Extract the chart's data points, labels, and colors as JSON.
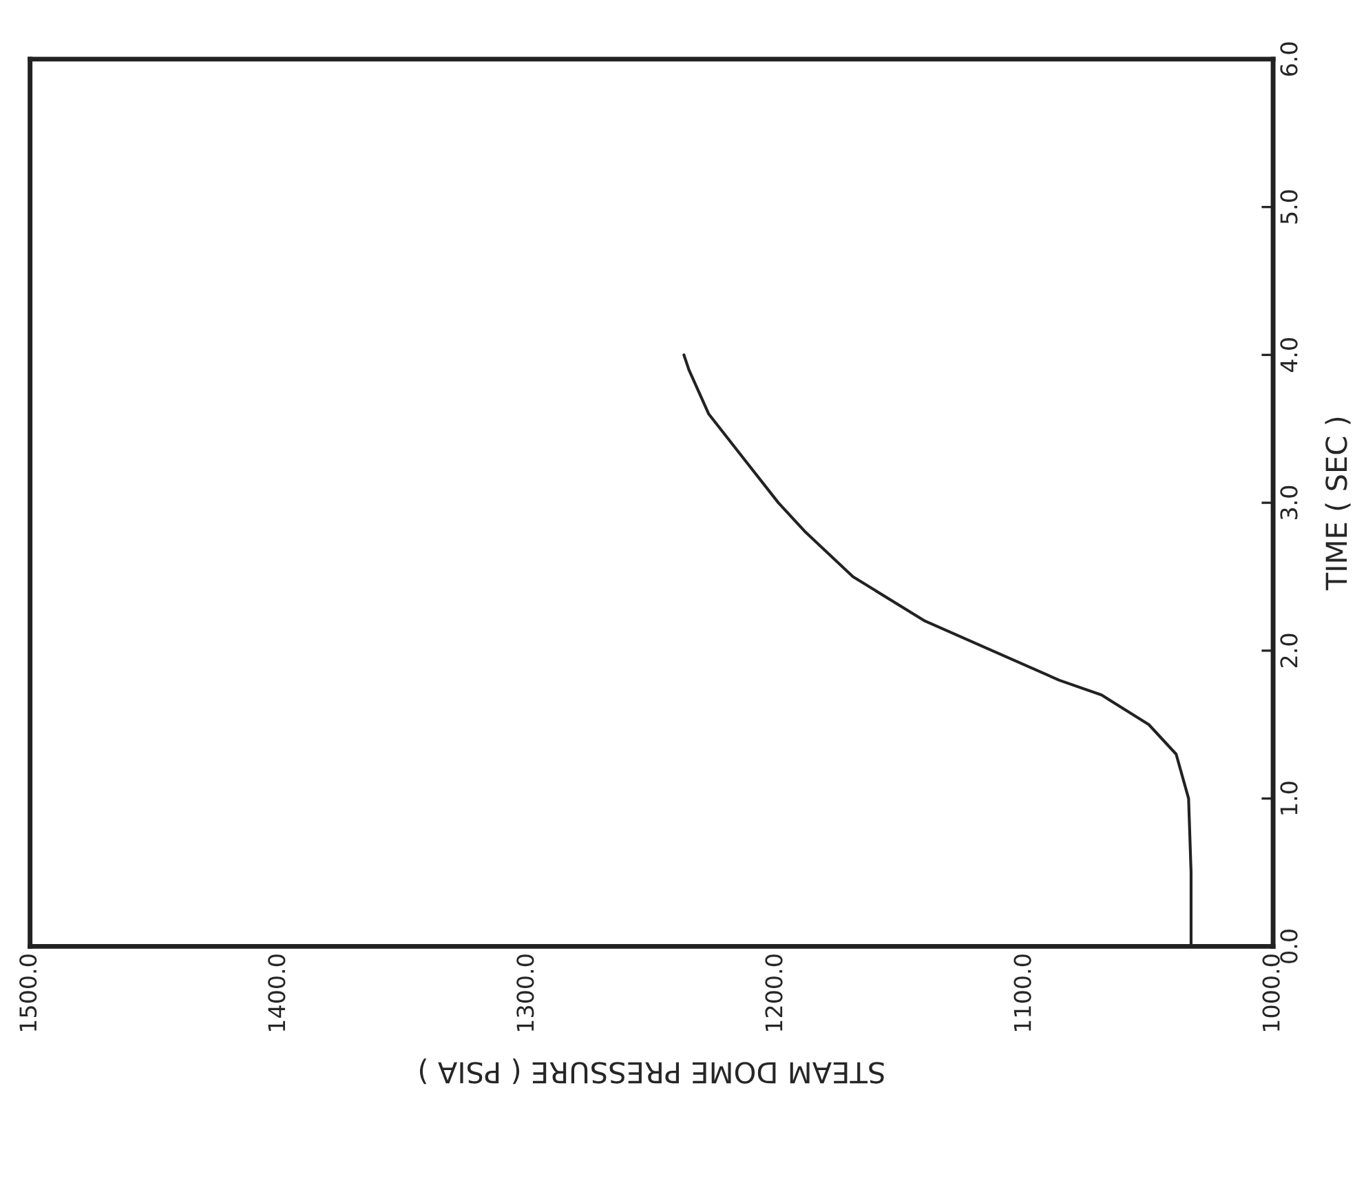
{
  "chart_data": {
    "type": "line",
    "xlabel": "STEAM DOME PRESSURE ( PSIA )",
    "ylabel": "TIME ( SEC )",
    "x": [
      1033,
      1033,
      1034,
      1039,
      1050,
      1069,
      1086,
      1113,
      1140,
      1169,
      1188,
      1199,
      1213,
      1227,
      1235,
      1237
    ],
    "series": [
      {
        "color": "#222222",
        "values": [
          0,
          0.5,
          1.0,
          1.3,
          1.5,
          1.7,
          1.8,
          2.0,
          2.2,
          2.5,
          2.8,
          3.0,
          3.3,
          3.6,
          3.9,
          4.0
        ]
      }
    ],
    "ylim": [
      0,
      6
    ],
    "yticks": [
      {
        "value": 0,
        "label": "0.0"
      },
      {
        "value": 1,
        "label": "1.0"
      },
      {
        "value": 2,
        "label": "2.0"
      },
      {
        "value": 3,
        "label": "3.0"
      },
      {
        "value": 4,
        "label": "4.0"
      },
      {
        "value": 5,
        "label": "5.0"
      },
      {
        "value": 6,
        "label": "6.0"
      }
    ],
    "xlim": [
      1500,
      1000
    ],
    "xticks": [
      {
        "value": 1000,
        "label": "1000.0"
      },
      {
        "value": 1100,
        "label": "1100.0"
      },
      {
        "value": 1200,
        "label": "1200.0"
      },
      {
        "value": 1300,
        "label": "1300.0"
      },
      {
        "value": 1400,
        "label": "1400.0"
      },
      {
        "value": 1500,
        "label": "1500.0"
      }
    ],
    "grid": false,
    "marker": "none",
    "line_style": "solid"
  }
}
